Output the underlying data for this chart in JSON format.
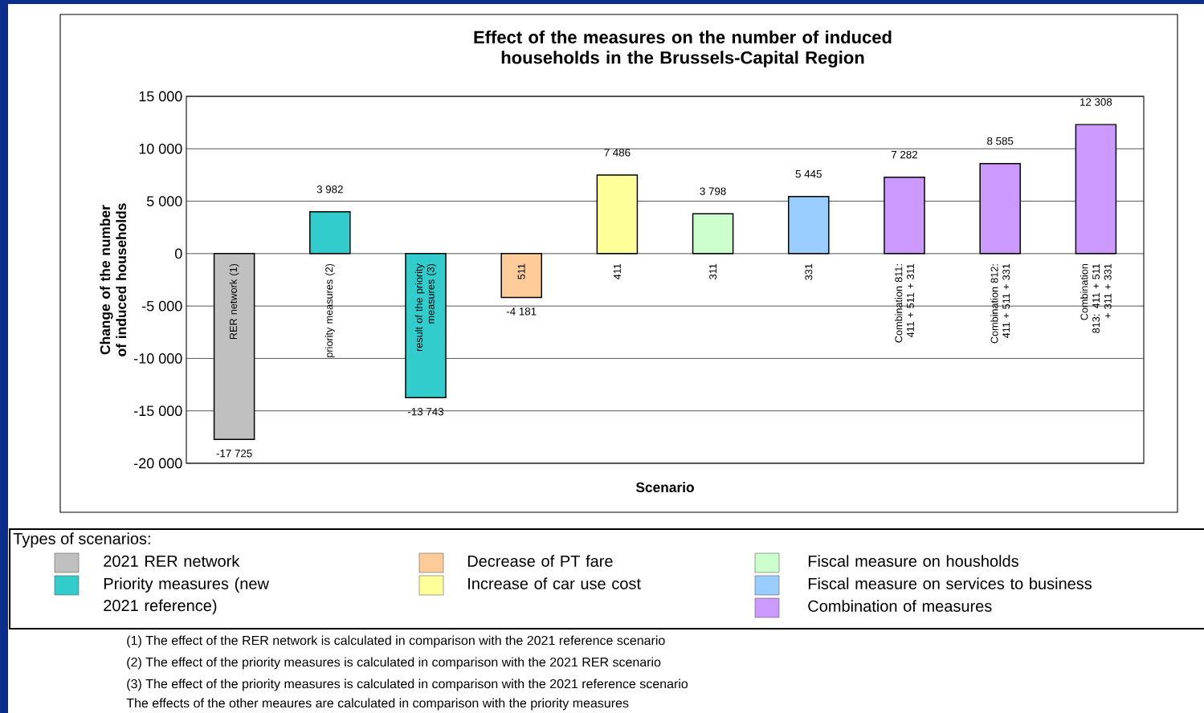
{
  "chart_data": {
    "type": "bar",
    "title": "Effect of the measures on the number of induced households in the Brussels-Capital Region",
    "xlabel": "Scenario",
    "ylabel": "Change of the number of induced households",
    "categories": [
      "RER network (1)",
      "priority measures (2)",
      "result of the priority measures (3)",
      "511",
      "411",
      "311",
      "331",
      "Combination 811: 411 + 511 + 311",
      "Combination 812: 411 + 511 + 331",
      "Combination 813: 411 + 511 + 311 + 331"
    ],
    "series": [
      {
        "name": "2021 RER network",
        "color": "#c0c0c0",
        "values": [
          -17725,
          null,
          null,
          null,
          null,
          null,
          null,
          null,
          null,
          null
        ],
        "value_labels": [
          "-17 725",
          null,
          null,
          null,
          null,
          null,
          null,
          null,
          null,
          null
        ]
      },
      {
        "name": "Priority measures (new 2021 reference)",
        "color": "#33cccc",
        "values": [
          null,
          3982,
          -13743,
          null,
          null,
          null,
          null,
          null,
          null,
          null
        ],
        "value_labels": [
          null,
          "3 982",
          "-13 743",
          null,
          null,
          null,
          null,
          null,
          null,
          null
        ]
      },
      {
        "name": "Decrease of PT fare",
        "color": "#ffcc99",
        "values": [
          null,
          null,
          null,
          -4181,
          null,
          null,
          null,
          null,
          null,
          null
        ],
        "value_labels": [
          null,
          null,
          null,
          "-4 181",
          null,
          null,
          null,
          null,
          null,
          null
        ]
      },
      {
        "name": "Increase of car use cost",
        "color": "#ffff99",
        "values": [
          null,
          null,
          null,
          null,
          7486,
          null,
          null,
          null,
          null,
          null
        ],
        "value_labels": [
          null,
          null,
          null,
          null,
          "7 486",
          null,
          null,
          null,
          null,
          null
        ]
      },
      {
        "name": "Fiscal measure on housholds",
        "color": "#ccffcc",
        "values": [
          null,
          null,
          null,
          null,
          null,
          3798,
          null,
          null,
          null,
          null
        ],
        "value_labels": [
          null,
          null,
          null,
          null,
          null,
          "3 798",
          null,
          null,
          null,
          null
        ]
      },
      {
        "name": "Fiscal measure on services to business",
        "color": "#99ccff",
        "values": [
          null,
          null,
          null,
          null,
          null,
          null,
          5445,
          null,
          null,
          null
        ],
        "value_labels": [
          null,
          null,
          null,
          null,
          null,
          null,
          "5 445",
          null,
          null,
          null
        ]
      },
      {
        "name": "Combination of measures",
        "color": "#cc99ff",
        "values": [
          null,
          null,
          null,
          null,
          null,
          null,
          null,
          7282,
          8585,
          12308
        ],
        "value_labels": [
          null,
          null,
          null,
          null,
          null,
          null,
          null,
          "7 282",
          "8 585",
          "12 308"
        ]
      }
    ],
    "ylim": [
      -20000,
      15000
    ],
    "yticks": [
      {
        "value": -20000,
        "label": "-20 000"
      },
      {
        "value": -15000,
        "label": "-15 000"
      },
      {
        "value": -10000,
        "label": "-10 000"
      },
      {
        "value": -5000,
        "label": "-5 000"
      },
      {
        "value": 0,
        "label": "0"
      },
      {
        "value": 5000,
        "label": "5 000"
      },
      {
        "value": 10000,
        "label": "10 000"
      },
      {
        "value": 15000,
        "label": "15 000"
      }
    ],
    "grid": "y",
    "legend": "bottom",
    "legend_title": "Types of scenarios:",
    "annotations": [
      "(1) The effect of the RER network is calculated in comparison with the 2021 reference scenario",
      "(2) The effect of the priority measures is calculated in comparison with the 2021 RER scenario",
      "(3) The effect of the priority measures is calculated in comparison with the 2021 reference scenario",
      "The effects of the other meaures are calculated in comparison with the priority measures"
    ]
  }
}
